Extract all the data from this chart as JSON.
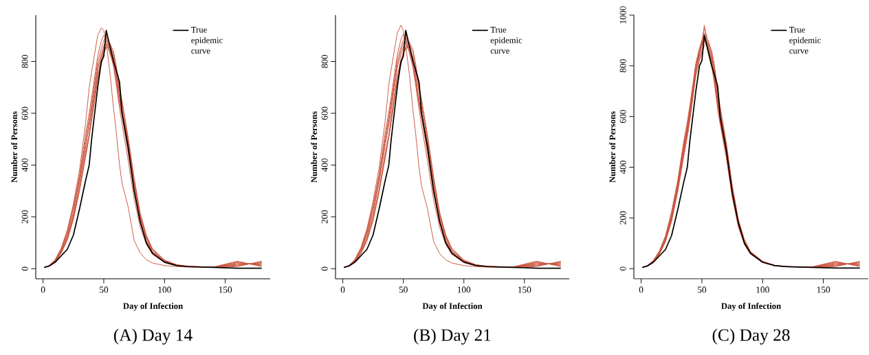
{
  "chart_data": [
    {
      "type": "line",
      "title": "(A) Day 14",
      "xlabel": "Day of Infection",
      "ylabel": "Number of Persons",
      "legend": "top right",
      "marker": "none",
      "xlim": [
        -6,
        187
      ],
      "ylim": [
        -39,
        979
      ],
      "xticks": [
        0,
        50,
        100,
        150
      ],
      "yticks": [
        0,
        200,
        400,
        600,
        800
      ],
      "x": [
        1,
        5,
        10,
        15,
        20,
        25,
        30,
        35,
        38,
        40,
        45,
        48,
        50,
        52,
        55,
        58,
        60,
        63,
        65,
        70,
        75,
        80,
        85,
        90,
        100,
        110,
        120,
        140,
        160,
        180
      ],
      "series": [
        {
          "color": "#c9523b",
          "values": [
            5,
            12,
            35,
            80,
            150,
            250,
            380,
            560,
            700,
            760,
            900,
            930,
            920,
            870,
            760,
            620,
            540,
            400,
            330,
            240,
            110,
            60,
            35,
            22,
            12,
            8,
            6,
            5,
            8,
            29
          ]
        },
        {
          "color": "#c9523b",
          "values": [
            5,
            11,
            30,
            70,
            130,
            220,
            340,
            480,
            560,
            620,
            780,
            830,
            860,
            880,
            870,
            820,
            760,
            660,
            610,
            480,
            330,
            200,
            120,
            70,
            30,
            14,
            8,
            6,
            11,
            26
          ]
        },
        {
          "color": "#c9523b",
          "values": [
            5,
            10,
            28,
            65,
            120,
            200,
            310,
            450,
            520,
            590,
            750,
            810,
            840,
            850,
            860,
            830,
            780,
            690,
            640,
            500,
            340,
            210,
            125,
            75,
            32,
            15,
            9,
            6,
            14,
            23
          ]
        },
        {
          "color": "#c9523b",
          "values": [
            5,
            12,
            32,
            72,
            140,
            235,
            350,
            500,
            580,
            640,
            800,
            850,
            880,
            900,
            840,
            800,
            740,
            650,
            600,
            460,
            310,
            190,
            110,
            65,
            28,
            13,
            8,
            6,
            17,
            20
          ]
        },
        {
          "color": "#c9523b",
          "values": [
            5,
            10,
            26,
            60,
            110,
            190,
            300,
            430,
            510,
            570,
            730,
            790,
            830,
            860,
            850,
            810,
            760,
            680,
            620,
            490,
            330,
            200,
            120,
            70,
            30,
            14,
            8,
            5,
            20,
            17
          ]
        },
        {
          "color": "#c9523b",
          "values": [
            5,
            11,
            30,
            68,
            125,
            210,
            330,
            470,
            550,
            610,
            770,
            820,
            850,
            870,
            830,
            790,
            730,
            640,
            590,
            450,
            300,
            180,
            105,
            62,
            27,
            12,
            8,
            6,
            23,
            14
          ]
        },
        {
          "color": "#c9523b",
          "values": [
            5,
            12,
            33,
            75,
            145,
            240,
            360,
            520,
            600,
            660,
            820,
            880,
            900,
            890,
            840,
            780,
            720,
            620,
            560,
            420,
            270,
            160,
            95,
            55,
            24,
            11,
            7,
            5,
            26,
            11
          ]
        },
        {
          "color": "#c9523b",
          "values": [
            5,
            10,
            27,
            62,
            115,
            195,
            305,
            440,
            515,
            580,
            740,
            800,
            830,
            860,
            870,
            840,
            790,
            700,
            650,
            510,
            350,
            215,
            130,
            78,
            33,
            15,
            9,
            6,
            29,
            8
          ]
        },
        {
          "name": "True epidemic curve",
          "color": "#000000",
          "values": [
            5,
            10,
            25,
            50,
            75,
            130,
            230,
            340,
            400,
            500,
            700,
            800,
            820,
            920,
            860,
            800,
            770,
            720,
            600,
            470,
            300,
            180,
            100,
            60,
            25,
            12,
            8,
            5,
            2,
            2
          ]
        }
      ]
    },
    {
      "type": "line",
      "title": "(B) Day 21",
      "xlabel": "Day of Infection",
      "ylabel": "Number of Persons",
      "legend": "top right",
      "marker": "none",
      "xlim": [
        -6,
        187
      ],
      "ylim": [
        -39,
        979
      ],
      "xticks": [
        0,
        50,
        100,
        150
      ],
      "yticks": [
        0,
        200,
        400,
        600,
        800
      ],
      "x": [
        1,
        5,
        10,
        15,
        20,
        25,
        30,
        35,
        38,
        40,
        45,
        48,
        50,
        52,
        55,
        58,
        60,
        63,
        65,
        70,
        75,
        80,
        85,
        90,
        100,
        110,
        120,
        140,
        160,
        180
      ],
      "series": [
        {
          "color": "#c9523b",
          "values": [
            5,
            12,
            36,
            82,
            155,
            260,
            390,
            570,
            710,
            770,
            910,
            940,
            920,
            860,
            750,
            610,
            530,
            390,
            320,
            230,
            105,
            58,
            34,
            22,
            12,
            8,
            6,
            5,
            8,
            29
          ]
        },
        {
          "color": "#c9523b",
          "values": [
            5,
            11,
            31,
            72,
            135,
            225,
            345,
            490,
            570,
            630,
            790,
            840,
            870,
            890,
            860,
            810,
            750,
            650,
            600,
            470,
            320,
            195,
            118,
            68,
            29,
            13,
            8,
            6,
            11,
            26
          ]
        },
        {
          "color": "#c9523b",
          "values": [
            5,
            10,
            27,
            63,
            118,
            198,
            305,
            445,
            515,
            585,
            745,
            805,
            835,
            845,
            865,
            835,
            785,
            695,
            645,
            505,
            345,
            212,
            126,
            76,
            32,
            15,
            9,
            6,
            14,
            23
          ]
        },
        {
          "color": "#c9523b",
          "values": [
            5,
            12,
            33,
            74,
            142,
            238,
            355,
            505,
            585,
            645,
            805,
            855,
            885,
            905,
            845,
            795,
            735,
            645,
            595,
            455,
            305,
            188,
            108,
            64,
            28,
            13,
            8,
            6,
            17,
            20
          ]
        },
        {
          "color": "#c9523b",
          "values": [
            5,
            10,
            25,
            58,
            108,
            185,
            295,
            425,
            505,
            565,
            725,
            785,
            825,
            855,
            855,
            815,
            765,
            685,
            625,
            495,
            335,
            205,
            122,
            71,
            30,
            14,
            8,
            5,
            20,
            17
          ]
        },
        {
          "color": "#c9523b",
          "values": [
            5,
            11,
            30,
            69,
            127,
            212,
            332,
            475,
            555,
            615,
            775,
            825,
            855,
            875,
            835,
            785,
            725,
            635,
            585,
            445,
            295,
            178,
            104,
            61,
            27,
            12,
            8,
            6,
            23,
            14
          ]
        },
        {
          "color": "#c9523b",
          "values": [
            5,
            12,
            34,
            76,
            148,
            245,
            365,
            525,
            605,
            665,
            825,
            885,
            905,
            885,
            835,
            775,
            715,
            615,
            555,
            415,
            265,
            158,
            94,
            55,
            24,
            11,
            7,
            5,
            26,
            11
          ]
        },
        {
          "color": "#c9523b",
          "values": [
            5,
            10,
            26,
            61,
            113,
            192,
            302,
            435,
            510,
            575,
            735,
            795,
            825,
            855,
            875,
            845,
            795,
            705,
            655,
            515,
            355,
            218,
            132,
            79,
            33,
            15,
            9,
            6,
            29,
            8
          ]
        },
        {
          "name": "True epidemic curve",
          "color": "#000000",
          "values": [
            5,
            10,
            25,
            50,
            75,
            130,
            230,
            340,
            400,
            500,
            700,
            800,
            820,
            920,
            860,
            800,
            770,
            720,
            600,
            470,
            300,
            180,
            100,
            60,
            25,
            12,
            8,
            5,
            2,
            2
          ]
        }
      ]
    },
    {
      "type": "line",
      "title": "(C) Day 28",
      "xlabel": "Day of Infection",
      "ylabel": "Number of Persons",
      "legend": "top right",
      "marker": "none",
      "xlim": [
        -6,
        187
      ],
      "ylim": [
        -40,
        1000
      ],
      "xticks": [
        0,
        50,
        100,
        150
      ],
      "yticks": [
        0,
        200,
        400,
        600,
        800,
        1000
      ],
      "x": [
        1,
        5,
        10,
        15,
        20,
        25,
        30,
        35,
        38,
        40,
        45,
        48,
        50,
        52,
        55,
        58,
        60,
        63,
        65,
        70,
        75,
        80,
        85,
        90,
        100,
        110,
        120,
        140,
        160,
        180
      ],
      "series": [
        {
          "color": "#c9523b",
          "values": [
            5,
            12,
            30,
            65,
            120,
            210,
            330,
            480,
            560,
            620,
            800,
            860,
            900,
            930,
            880,
            820,
            760,
            650,
            580,
            450,
            290,
            170,
            100,
            60,
            26,
            12,
            8,
            6,
            8,
            29
          ]
        },
        {
          "color": "#c9523b",
          "values": [
            5,
            11,
            28,
            62,
            115,
            200,
            320,
            470,
            550,
            610,
            790,
            850,
            890,
            950,
            900,
            840,
            780,
            670,
            600,
            470,
            300,
            180,
            105,
            62,
            27,
            12,
            8,
            6,
            11,
            26
          ]
        },
        {
          "color": "#c9523b",
          "values": [
            5,
            10,
            26,
            58,
            110,
            190,
            310,
            450,
            530,
            590,
            770,
            840,
            880,
            910,
            880,
            830,
            790,
            690,
            620,
            480,
            310,
            185,
            110,
            65,
            28,
            13,
            8,
            5,
            14,
            23
          ]
        },
        {
          "color": "#c9523b",
          "values": [
            5,
            12,
            32,
            70,
            130,
            225,
            345,
            500,
            580,
            640,
            810,
            870,
            900,
            920,
            860,
            800,
            740,
            630,
            570,
            440,
            280,
            165,
            95,
            58,
            25,
            12,
            8,
            6,
            17,
            20
          ]
        },
        {
          "color": "#c9523b",
          "values": [
            5,
            10,
            27,
            60,
            112,
            195,
            315,
            460,
            540,
            600,
            780,
            830,
            860,
            900,
            890,
            850,
            800,
            700,
            630,
            490,
            320,
            190,
            112,
            66,
            28,
            13,
            8,
            6,
            20,
            17
          ]
        },
        {
          "color": "#c9523b",
          "values": [
            5,
            11,
            29,
            64,
            118,
            205,
            325,
            470,
            550,
            615,
            795,
            855,
            880,
            960,
            870,
            810,
            750,
            640,
            580,
            450,
            290,
            172,
            100,
            60,
            26,
            12,
            8,
            5,
            23,
            14
          ]
        },
        {
          "color": "#c9523b",
          "values": [
            5,
            11,
            31,
            68,
            125,
            215,
            335,
            490,
            565,
            630,
            800,
            860,
            890,
            900,
            870,
            815,
            770,
            670,
            600,
            460,
            295,
            175,
            104,
            61,
            26,
            12,
            8,
            6,
            26,
            11
          ]
        },
        {
          "color": "#c9523b",
          "values": [
            5,
            10,
            25,
            56,
            105,
            185,
            300,
            440,
            520,
            580,
            760,
            820,
            850,
            880,
            900,
            860,
            810,
            710,
            640,
            500,
            330,
            195,
            115,
            68,
            29,
            13,
            8,
            6,
            29,
            8
          ]
        },
        {
          "name": "True epidemic curve",
          "color": "#000000",
          "values": [
            5,
            10,
            25,
            50,
            75,
            130,
            230,
            340,
            400,
            500,
            700,
            800,
            820,
            920,
            860,
            800,
            770,
            720,
            600,
            470,
            300,
            180,
            100,
            60,
            25,
            12,
            8,
            5,
            2,
            2
          ]
        }
      ]
    }
  ]
}
